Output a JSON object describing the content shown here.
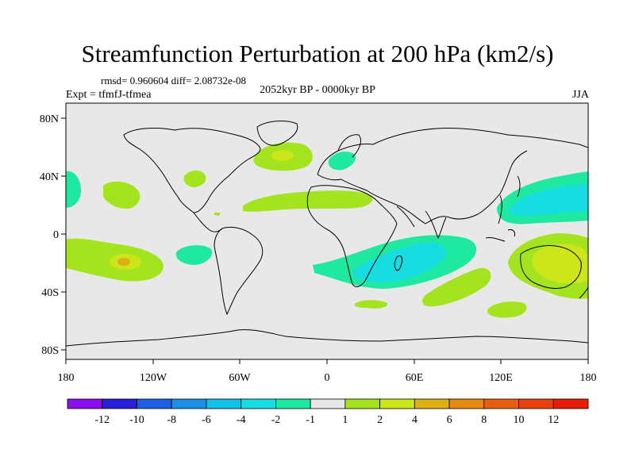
{
  "figure": {
    "title": "Streamfunction Perturbation at 200 hPa (km2/s)",
    "stats": "rmsd= 0.960604 diff= 2.08732e-08",
    "experiment": "Expt = tfmfJ-tfmea",
    "period": "2052kyr BP - 0000kyr BP",
    "season": "JJA"
  },
  "axes": {
    "x_ticks": [
      "180",
      "120W",
      "60W",
      "0",
      "60E",
      "120E",
      "180"
    ],
    "y_ticks": [
      "80N",
      "40N",
      "0",
      "40S",
      "80S"
    ]
  },
  "colorbar": {
    "labels": [
      "-12",
      "-10",
      "-8",
      "-6",
      "-4",
      "-2",
      "-1",
      "1",
      "2",
      "4",
      "6",
      "8",
      "10",
      "12"
    ],
    "colors": [
      "#8a10f0",
      "#2a1fd8",
      "#1f5fe6",
      "#1a8fe6",
      "#12bfe6",
      "#18dde0",
      "#1fe8a0",
      "#e8e8e8",
      "#a4e41e",
      "#cce61a",
      "#dcb014",
      "#e68a12",
      "#e8600e",
      "#e8420e",
      "#e81c0a"
    ]
  },
  "map_colors": {
    "land_outline": "#000000",
    "background": "#e8e8e8"
  }
}
